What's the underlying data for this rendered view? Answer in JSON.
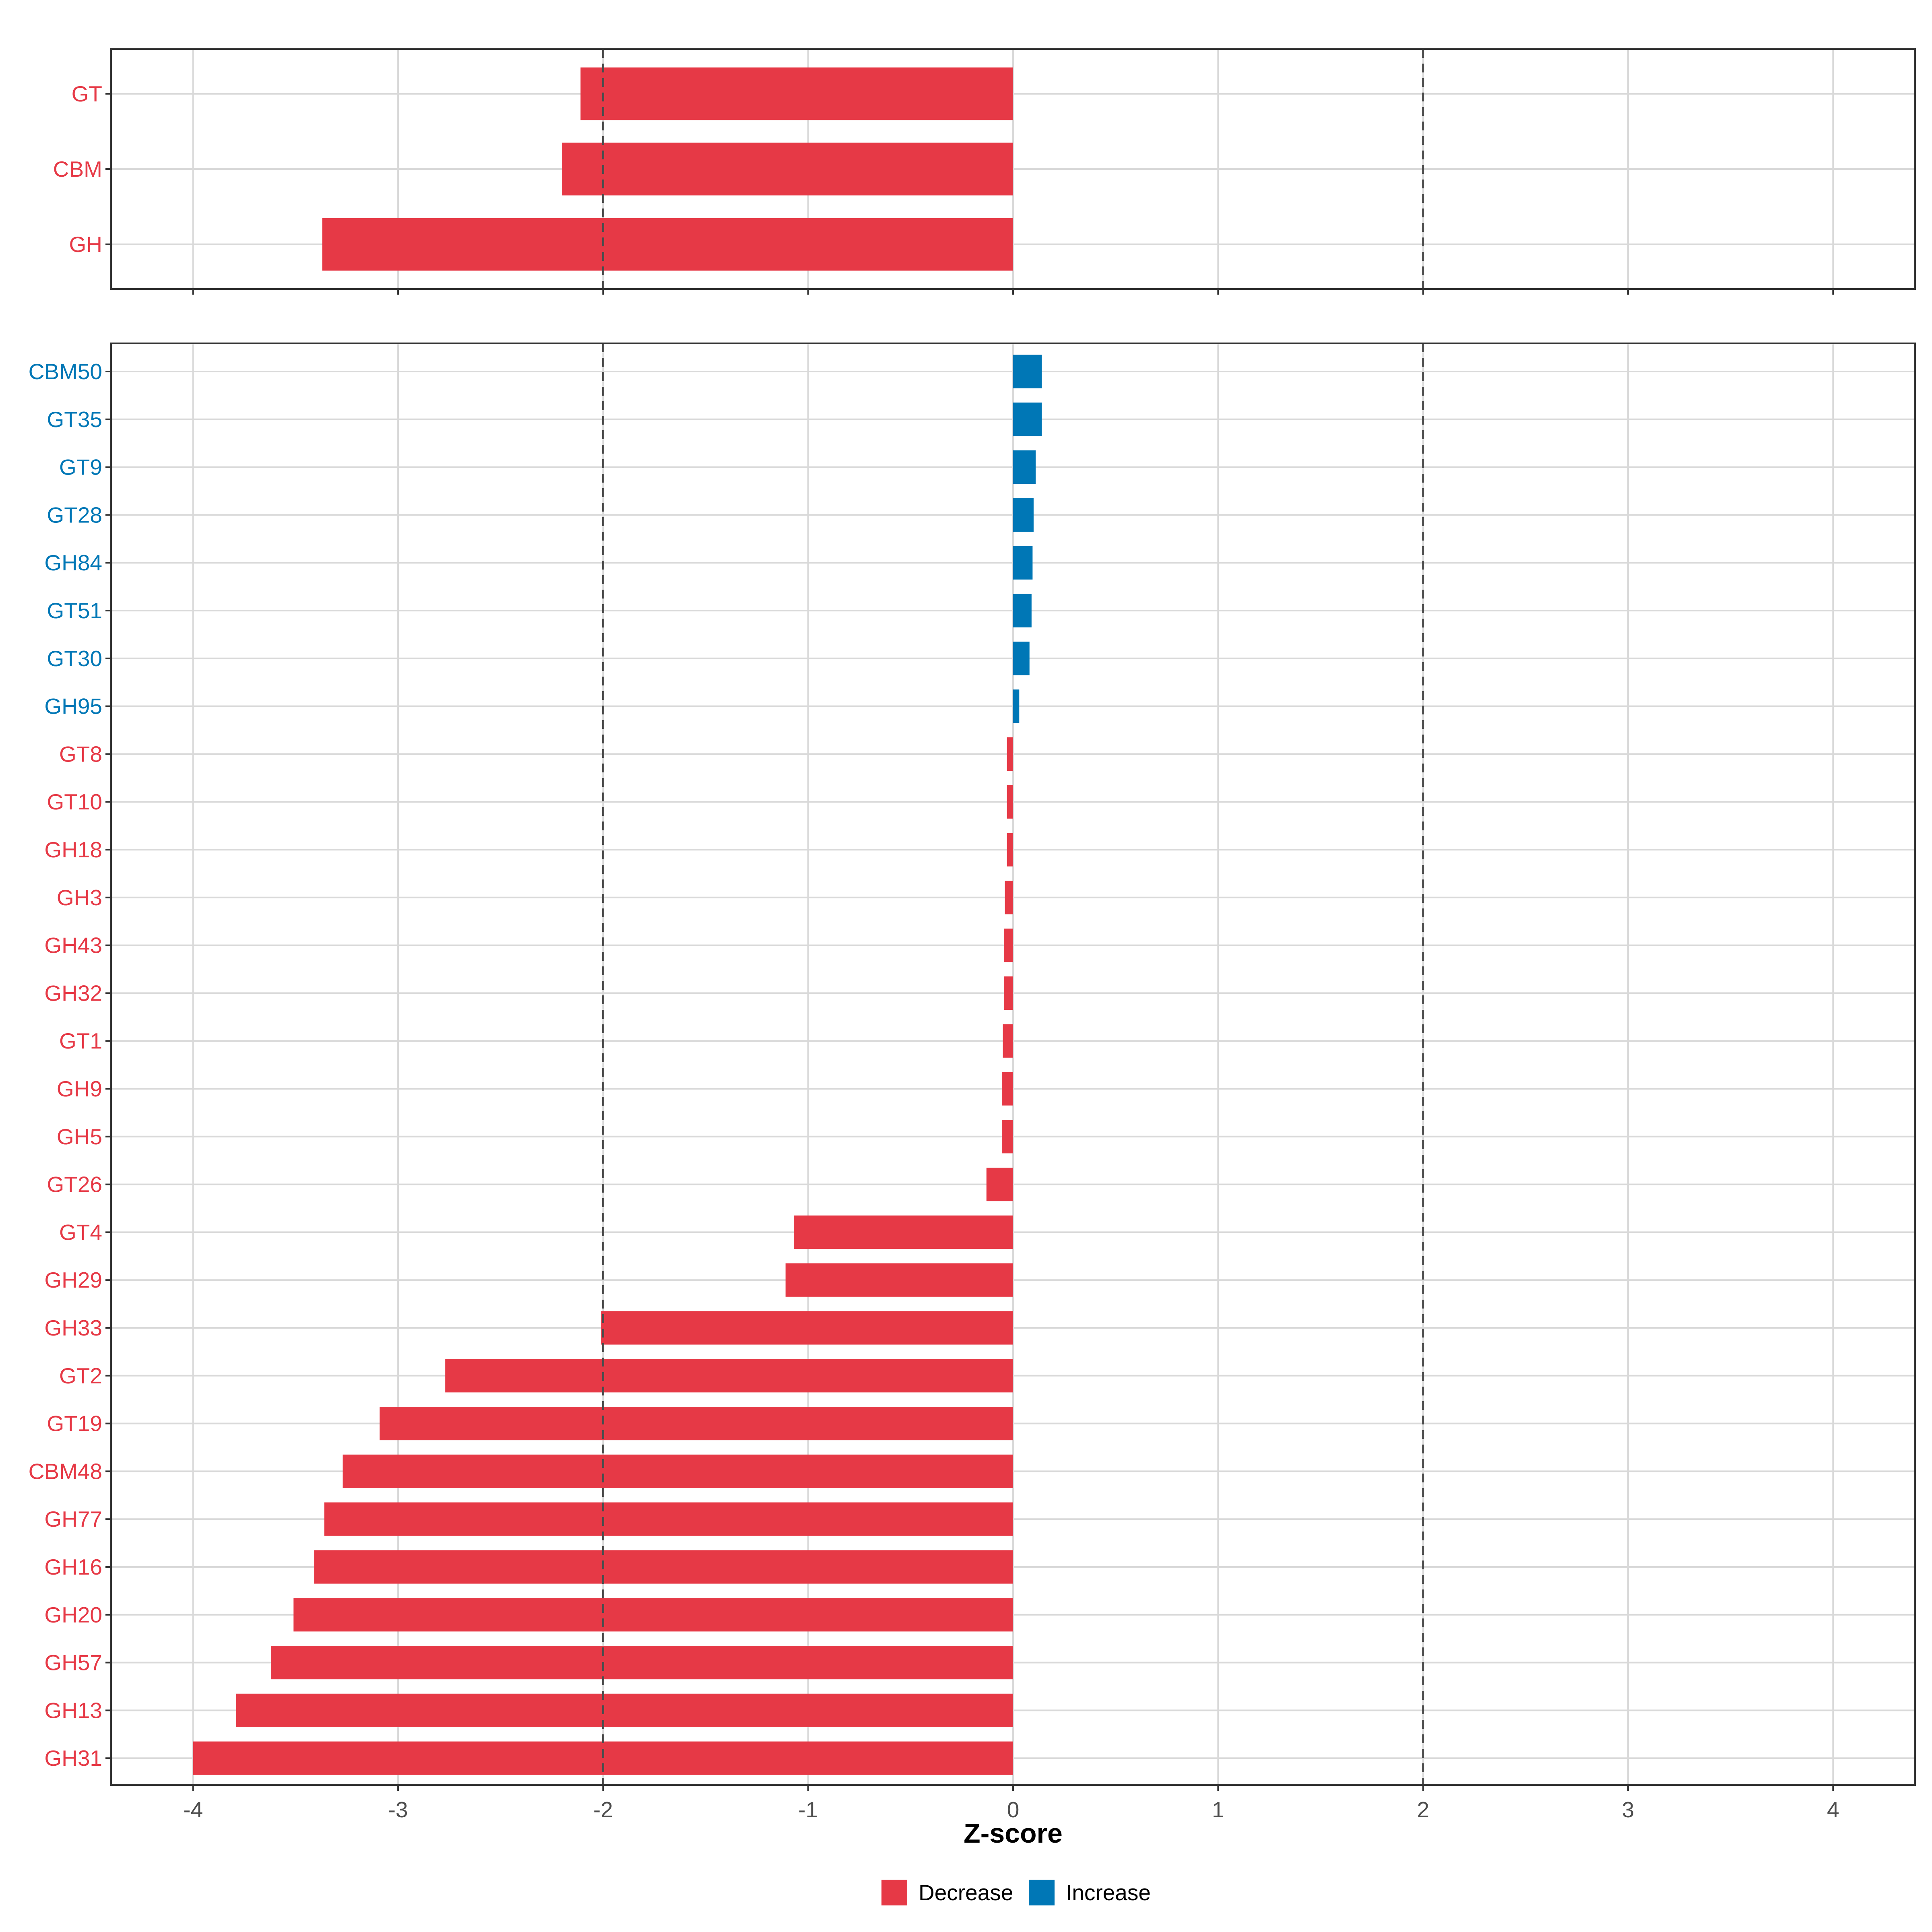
{
  "colors": {
    "decrease": "#e63946",
    "increase": "#0077b6",
    "grid": "#d9d9d9",
    "panel_border": "#333333",
    "threshold_line": "#4d4d4d"
  },
  "chart_data": {
    "type": "bar",
    "orientation": "horizontal",
    "xlabel": "Z-score",
    "xlim": [
      -4.4,
      4.4
    ],
    "x_ticks": [
      -4,
      -3,
      -2,
      -1,
      0,
      1,
      2,
      3,
      4
    ],
    "x_tick_labels": [
      "-4",
      "-3",
      "-2",
      "-1",
      "0",
      "1",
      "2",
      "3",
      "4"
    ],
    "thresholds": [
      -2,
      2
    ],
    "legend": {
      "position": "bottom",
      "entries": [
        {
          "label": "Decrease",
          "key": "decrease"
        },
        {
          "label": "Increase",
          "key": "increase"
        }
      ]
    },
    "panels": [
      {
        "name": "class",
        "categories": [
          "GT",
          "CBM",
          "GH"
        ],
        "values": [
          -2.11,
          -2.2,
          -3.37
        ],
        "directions": [
          "decrease",
          "decrease",
          "decrease"
        ]
      },
      {
        "name": "family",
        "categories": [
          "CBM50",
          "GT35",
          "GT9",
          "GT28",
          "GH84",
          "GT51",
          "GT30",
          "GH95",
          "GT8",
          "GT10",
          "GH18",
          "GH3",
          "GH43",
          "GH32",
          "GT1",
          "GH9",
          "GH5",
          "GT26",
          "GT4",
          "GH29",
          "GH33",
          "GT2",
          "GT19",
          "CBM48",
          "GH77",
          "GH16",
          "GH20",
          "GH57",
          "GH13",
          "GH31"
        ],
        "values": [
          0.14,
          0.14,
          0.11,
          0.1,
          0.095,
          0.09,
          0.08,
          0.03,
          -0.03,
          -0.03,
          -0.03,
          -0.04,
          -0.045,
          -0.045,
          -0.05,
          -0.055,
          -0.055,
          -0.13,
          -1.07,
          -1.11,
          -2.01,
          -2.77,
          -3.09,
          -3.27,
          -3.36,
          -3.41,
          -3.51,
          -3.62,
          -3.79,
          -4.0
        ],
        "directions": [
          "increase",
          "increase",
          "increase",
          "increase",
          "increase",
          "increase",
          "increase",
          "increase",
          "decrease",
          "decrease",
          "decrease",
          "decrease",
          "decrease",
          "decrease",
          "decrease",
          "decrease",
          "decrease",
          "decrease",
          "decrease",
          "decrease",
          "decrease",
          "decrease",
          "decrease",
          "decrease",
          "decrease",
          "decrease",
          "decrease",
          "decrease",
          "decrease",
          "decrease"
        ]
      }
    ]
  }
}
